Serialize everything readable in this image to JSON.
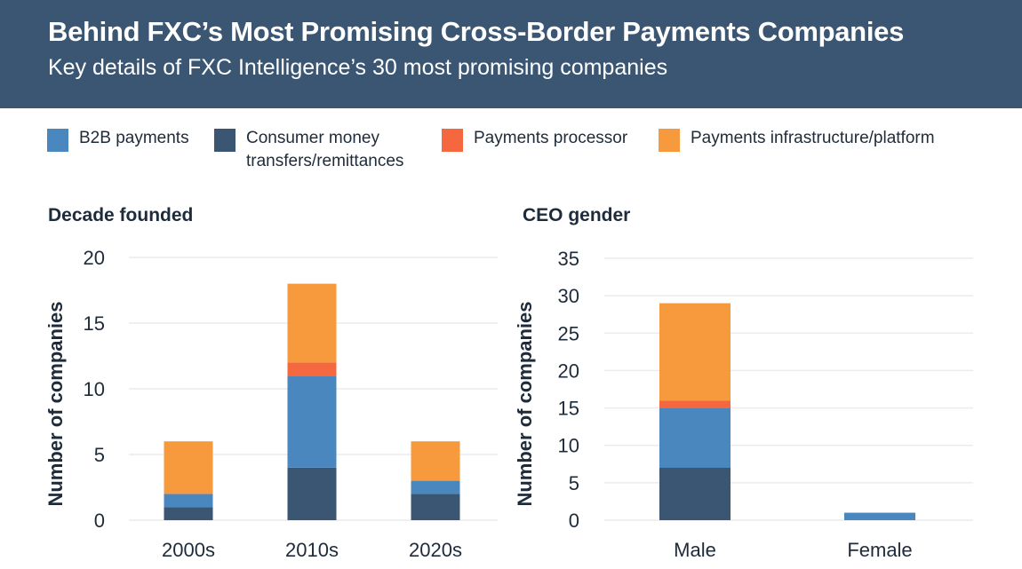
{
  "header": {
    "title": "Behind FXC’s Most Promising Cross-Border Payments Companies",
    "subtitle": "Key details of FXC Intelligence’s 30 most promising companies"
  },
  "legend": [
    {
      "label": "B2B payments",
      "color": "#4a87bf"
    },
    {
      "label": "Consumer money transfers/remittances",
      "label_lines": [
        "Consumer money",
        "transfers/remittances"
      ],
      "color": "#3a5673"
    },
    {
      "label": "Payments processor",
      "color": "#f5683f"
    },
    {
      "label": "Payments infrastructure/platform",
      "color": "#f79a3e"
    }
  ],
  "chart_data": [
    {
      "type": "bar",
      "stacked": true,
      "title": "Decade founded",
      "xlabel": "",
      "ylabel": "Number of companies",
      "categories": [
        "2000s",
        "2010s",
        "2020s"
      ],
      "ylim": [
        0,
        20
      ],
      "yticks": [
        0,
        5,
        10,
        15,
        20
      ],
      "grid": true,
      "series": [
        {
          "name": "Consumer money transfers/remittances",
          "color": "#3a5673",
          "values": [
            1,
            4,
            2
          ]
        },
        {
          "name": "B2B payments",
          "color": "#4a87bf",
          "values": [
            1,
            7,
            1
          ]
        },
        {
          "name": "Payments processor",
          "color": "#f5683f",
          "values": [
            0,
            1,
            0
          ]
        },
        {
          "name": "Payments infrastructure/platform",
          "color": "#f79a3e",
          "values": [
            4,
            6,
            3
          ]
        }
      ]
    },
    {
      "type": "bar",
      "stacked": true,
      "title": "CEO gender",
      "xlabel": "",
      "ylabel": "Number of companies",
      "categories": [
        "Male",
        "Female"
      ],
      "ylim": [
        0,
        35
      ],
      "yticks": [
        0,
        5,
        10,
        15,
        20,
        25,
        30,
        35
      ],
      "grid": true,
      "series": [
        {
          "name": "Consumer money transfers/remittances",
          "color": "#3a5673",
          "values": [
            7,
            0
          ]
        },
        {
          "name": "B2B payments",
          "color": "#4a87bf",
          "values": [
            8,
            1
          ]
        },
        {
          "name": "Payments processor",
          "color": "#f5683f",
          "values": [
            1,
            0
          ]
        },
        {
          "name": "Payments infrastructure/platform",
          "color": "#f79a3e",
          "values": [
            13,
            0
          ]
        }
      ]
    }
  ]
}
